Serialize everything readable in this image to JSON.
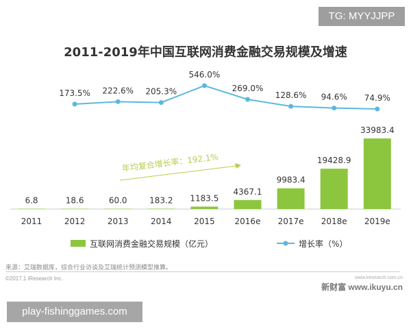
{
  "watermark_top": "TG: MYYJJPP",
  "watermark_bottom": "play-fishinggames.com",
  "chart_data": {
    "type": "bar+line",
    "title": "2011-2019年中国互联网消费金融交易规模及增速",
    "categories": [
      "2011",
      "2012",
      "2013",
      "2014",
      "2015",
      "2016e",
      "2017e",
      "2018e",
      "2019e"
    ],
    "series": [
      {
        "name": "互联网消费金融交易规模（亿元）",
        "type": "bar",
        "color": "#8cc63f",
        "values": [
          6.8,
          18.6,
          60.0,
          183.2,
          1183.5,
          4367.1,
          9983.4,
          19428.9,
          33983.4
        ],
        "labels": [
          "6.8",
          "18.6",
          "60.0",
          "183.2",
          "1183.5",
          "4367.1",
          "9983.4",
          "19428.9",
          "33983.4"
        ]
      },
      {
        "name": "增长率（%）",
        "type": "line",
        "color": "#5bb8de",
        "values": [
          null,
          173.5,
          222.6,
          205.3,
          546.0,
          269.0,
          128.6,
          94.6,
          74.9
        ],
        "labels": [
          "",
          "173.5%",
          "222.6%",
          "205.3%",
          "546.0%",
          "269.0%",
          "128.6%",
          "94.6%",
          "74.9%"
        ]
      }
    ],
    "annotation": "年均复合增长率：192.1%",
    "legend_placement": "bottom",
    "grid": false
  },
  "footer": {
    "source": "来源：艾瑞数据库，综合行业访谈及艾瑞统计预测模型推算。",
    "copyright": "©2017.1 iResearch Inc.",
    "site_small": "www.iresearch.com.cn",
    "site_big": "新财富 www.ikuyu.cn"
  }
}
